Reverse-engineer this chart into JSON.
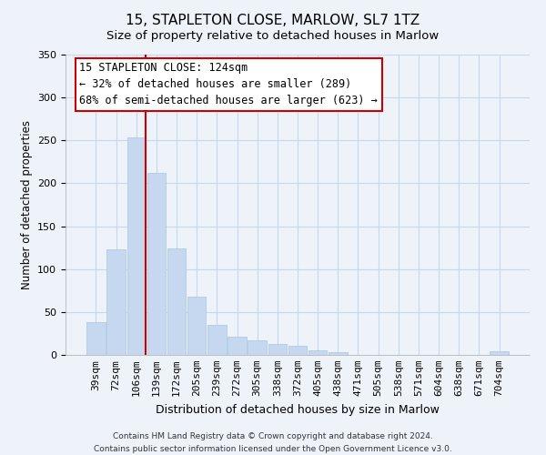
{
  "title": "15, STAPLETON CLOSE, MARLOW, SL7 1TZ",
  "subtitle": "Size of property relative to detached houses in Marlow",
  "xlabel": "Distribution of detached houses by size in Marlow",
  "ylabel": "Number of detached properties",
  "bar_labels": [
    "39sqm",
    "72sqm",
    "106sqm",
    "139sqm",
    "172sqm",
    "205sqm",
    "239sqm",
    "272sqm",
    "305sqm",
    "338sqm",
    "372sqm",
    "405sqm",
    "438sqm",
    "471sqm",
    "505sqm",
    "538sqm",
    "571sqm",
    "604sqm",
    "638sqm",
    "671sqm",
    "704sqm"
  ],
  "bar_values": [
    38,
    123,
    253,
    212,
    124,
    68,
    35,
    21,
    17,
    13,
    11,
    5,
    3,
    0,
    0,
    0,
    0,
    0,
    0,
    0,
    4
  ],
  "bar_color": "#c5d8f0",
  "bar_edge_color": "#a8c4e0",
  "vline_color": "#cc0000",
  "vline_x_index": 2,
  "annotation_line1": "15 STAPLETON CLOSE: 124sqm",
  "annotation_line2": "← 32% of detached houses are smaller (289)",
  "annotation_line3": "68% of semi-detached houses are larger (623) →",
  "annotation_box_color": "#ffffff",
  "annotation_box_edge_color": "#cc0000",
  "ylim": [
    0,
    350
  ],
  "yticks": [
    0,
    50,
    100,
    150,
    200,
    250,
    300,
    350
  ],
  "footer_line1": "Contains HM Land Registry data © Crown copyright and database right 2024.",
  "footer_line2": "Contains public sector information licensed under the Open Government Licence v3.0.",
  "bg_color": "#eef3fa",
  "grid_color": "#c8d8ec",
  "title_fontsize": 11,
  "subtitle_fontsize": 9.5,
  "xlabel_fontsize": 9,
  "ylabel_fontsize": 8.5,
  "tick_fontsize": 8,
  "ann_fontsize": 8.5,
  "footer_fontsize": 6.5
}
